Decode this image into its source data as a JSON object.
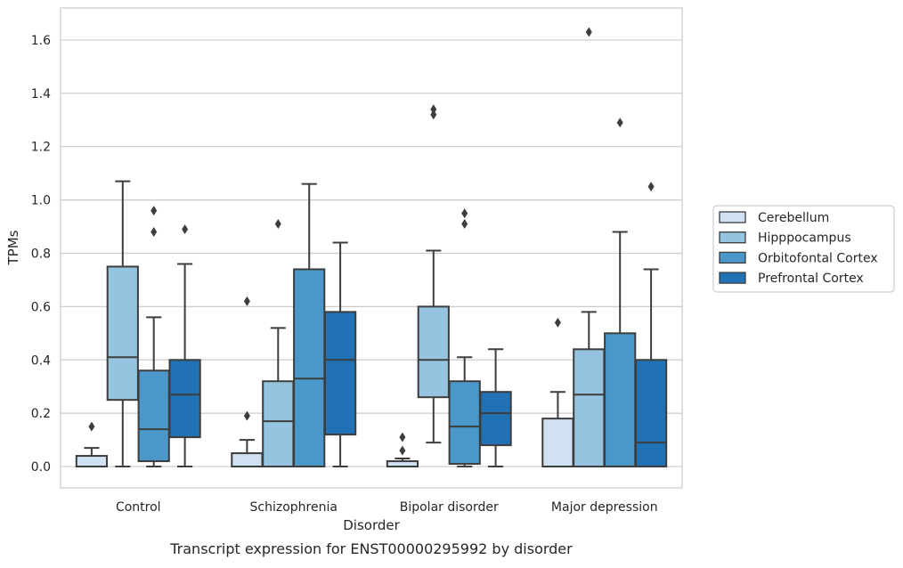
{
  "caption": "Transcript expression for ENST00000295992 by disorder",
  "chart_data": {
    "type": "box",
    "xlabel": "Disorder",
    "ylabel": "TPMs",
    "ylim": [
      -0.08,
      1.72
    ],
    "yticks": [
      "0.0",
      "0.2",
      "0.4",
      "0.6",
      "0.8",
      "1.0",
      "1.2",
      "1.4",
      "1.6"
    ],
    "grid": "horizontal",
    "legend_position": "right",
    "categories": [
      "Control",
      "Schizophrenia",
      "Bipolar disorder",
      "Major depression"
    ],
    "series": [
      {
        "name": "Cerebellum",
        "color": "#d0e1f2",
        "boxes": [
          {
            "whislo": 0.0,
            "q1": 0.0,
            "med": 0.0,
            "q3": 0.04,
            "whishi": 0.07,
            "fliers": [
              0.15
            ]
          },
          {
            "whislo": 0.0,
            "q1": 0.0,
            "med": 0.0,
            "q3": 0.05,
            "whishi": 0.1,
            "fliers": [
              0.19,
              0.62
            ]
          },
          {
            "whislo": 0.0,
            "q1": 0.0,
            "med": 0.0,
            "q3": 0.02,
            "whishi": 0.03,
            "fliers": [
              0.06,
              0.11
            ]
          },
          {
            "whislo": 0.0,
            "q1": 0.0,
            "med": 0.0,
            "q3": 0.18,
            "whishi": 0.28,
            "fliers": [
              0.54
            ]
          }
        ]
      },
      {
        "name": "Hipppocampus",
        "color": "#94c4df",
        "boxes": [
          {
            "whislo": 0.0,
            "q1": 0.25,
            "med": 0.41,
            "q3": 0.75,
            "whishi": 1.07,
            "fliers": []
          },
          {
            "whislo": 0.0,
            "q1": 0.0,
            "med": 0.17,
            "q3": 0.32,
            "whishi": 0.52,
            "fliers": [
              0.91
            ]
          },
          {
            "whislo": 0.09,
            "q1": 0.26,
            "med": 0.4,
            "q3": 0.6,
            "whishi": 0.81,
            "fliers": [
              1.32,
              1.34
            ]
          },
          {
            "whislo": 0.0,
            "q1": 0.0,
            "med": 0.27,
            "q3": 0.44,
            "whishi": 0.58,
            "fliers": [
              1.63
            ]
          }
        ]
      },
      {
        "name": "Orbitofontal Cortex",
        "color": "#4a98c9",
        "boxes": [
          {
            "whislo": 0.0,
            "q1": 0.02,
            "med": 0.14,
            "q3": 0.36,
            "whishi": 0.56,
            "fliers": [
              0.88,
              0.96
            ]
          },
          {
            "whislo": 0.0,
            "q1": 0.0,
            "med": 0.33,
            "q3": 0.74,
            "whishi": 1.06,
            "fliers": []
          },
          {
            "whislo": 0.0,
            "q1": 0.01,
            "med": 0.15,
            "q3": 0.32,
            "whishi": 0.41,
            "fliers": [
              0.91,
              0.95
            ]
          },
          {
            "whislo": 0.0,
            "q1": 0.0,
            "med": 0.0,
            "q3": 0.5,
            "whishi": 0.88,
            "fliers": [
              1.29
            ]
          }
        ]
      },
      {
        "name": "Prefrontal Cortex",
        "color": "#2171b5",
        "boxes": [
          {
            "whislo": 0.0,
            "q1": 0.11,
            "med": 0.27,
            "q3": 0.4,
            "whishi": 0.76,
            "fliers": [
              0.89
            ]
          },
          {
            "whislo": 0.0,
            "q1": 0.12,
            "med": 0.4,
            "q3": 0.58,
            "whishi": 0.84,
            "fliers": []
          },
          {
            "whislo": 0.0,
            "q1": 0.08,
            "med": 0.2,
            "q3": 0.28,
            "whishi": 0.44,
            "fliers": []
          },
          {
            "whislo": 0.0,
            "q1": 0.0,
            "med": 0.09,
            "q3": 0.4,
            "whishi": 0.74,
            "fliers": [
              1.05
            ]
          }
        ]
      }
    ]
  }
}
